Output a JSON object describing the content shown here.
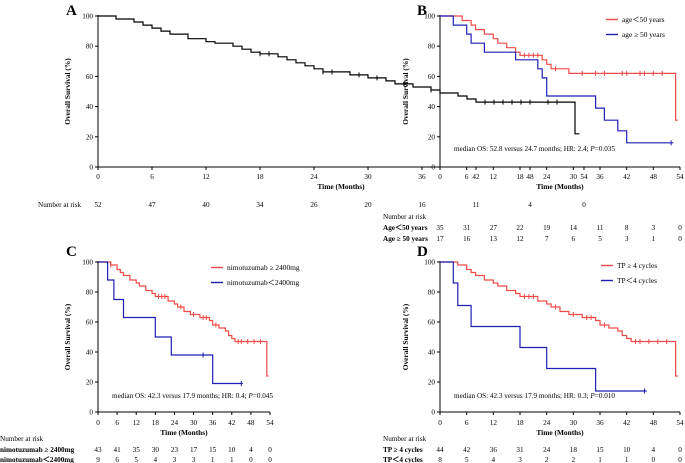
{
  "chart_data": [
    {
      "type": "line",
      "panel_label": "A",
      "xlabel": "Time (Months)",
      "ylabel": "Overall Survival (%)",
      "xlim": [
        0,
        54
      ],
      "ylim": [
        0,
        100
      ],
      "x_ticks": [
        "0",
        "6",
        "12",
        "18",
        "24",
        "30",
        "36",
        "42",
        "48",
        "54"
      ],
      "y_ticks": [
        "0",
        "20",
        "40",
        "60",
        "80",
        "100"
      ],
      "series": [
        {
          "name": "All patients",
          "color": "#000000",
          "steps": [
            [
              0,
              100
            ],
            [
              2,
              98
            ],
            [
              4,
              96
            ],
            [
              5,
              94
            ],
            [
              6,
              92
            ],
            [
              7,
              90
            ],
            [
              8,
              88
            ],
            [
              10,
              85
            ],
            [
              12,
              83
            ],
            [
              13,
              82
            ],
            [
              15,
              80
            ],
            [
              16,
              78
            ],
            [
              17,
              76
            ],
            [
              18,
              75
            ],
            [
              20,
              73
            ],
            [
              21,
              71
            ],
            [
              22,
              69
            ],
            [
              23,
              67
            ],
            [
              24,
              65
            ],
            [
              25,
              63
            ],
            [
              28,
              61
            ],
            [
              30,
              59
            ],
            [
              32,
              57
            ],
            [
              33,
              55
            ],
            [
              35,
              53
            ],
            [
              37,
              51
            ],
            [
              38,
              49
            ],
            [
              40,
              47
            ],
            [
              41,
              45
            ],
            [
              42,
              43
            ],
            [
              53,
              22
            ],
            [
              53.5,
              22
            ]
          ],
          "censors": [
            [
              18,
              75
            ],
            [
              19,
              75
            ],
            [
              25,
              63
            ],
            [
              26,
              63
            ],
            [
              29,
              61
            ],
            [
              31,
              59
            ],
            [
              34,
              55
            ],
            [
              37,
              51
            ],
            [
              43,
              43
            ],
            [
              44,
              43
            ],
            [
              45,
              43
            ],
            [
              46,
              43
            ],
            [
              47,
              43
            ],
            [
              48,
              43
            ],
            [
              50,
              43
            ],
            [
              51,
              43
            ]
          ]
        }
      ],
      "risk_table": {
        "header": "Number at risk",
        "rows": [
          {
            "label": "",
            "values": [
              "52",
              "47",
              "40",
              "34",
              "26",
              "20",
              "16",
              "11",
              "4",
              "0"
            ]
          }
        ]
      }
    },
    {
      "type": "line",
      "panel_label": "B",
      "xlabel": "Time (Months)",
      "ylabel": "Overall Survival (%)",
      "xlim": [
        0,
        54
      ],
      "ylim": [
        0,
        100
      ],
      "x_ticks": [
        "0",
        "6",
        "12",
        "18",
        "24",
        "30",
        "36",
        "42",
        "48",
        "54"
      ],
      "y_ticks": [
        "0",
        "20",
        "40",
        "60",
        "80",
        "100"
      ],
      "legend": [
        "age＜50 years",
        "age ≥ 50 years"
      ],
      "legend_position": "top-right",
      "annotation": {
        "text": "median OS: 52.8 versus 24.7 months; HR: 2.4; ",
        "italic": "P",
        "tail": "=0.035"
      },
      "series": [
        {
          "name": "age＜50 years",
          "color": "#f04a4a",
          "steps": [
            [
              0,
              100
            ],
            [
              5,
              97
            ],
            [
              7,
              94
            ],
            [
              8,
              91
            ],
            [
              10,
              88
            ],
            [
              12,
              85
            ],
            [
              13,
              82
            ],
            [
              15,
              79
            ],
            [
              17,
              76
            ],
            [
              18,
              74
            ],
            [
              23,
              71
            ],
            [
              24,
              68
            ],
            [
              25,
              65
            ],
            [
              29,
              62
            ],
            [
              52,
              62
            ],
            [
              53,
              31
            ],
            [
              53.5,
              31
            ]
          ],
          "censors": [
            [
              19,
              74
            ],
            [
              20,
              74
            ],
            [
              21,
              74
            ],
            [
              22,
              74
            ],
            [
              26,
              65
            ],
            [
              32,
              62
            ],
            [
              35,
              62
            ],
            [
              37,
              62
            ],
            [
              41,
              62
            ],
            [
              42,
              62
            ],
            [
              45,
              62
            ],
            [
              46,
              62
            ],
            [
              48,
              62
            ],
            [
              50,
              62
            ]
          ]
        },
        {
          "name": "age ≥ 50 years",
          "color": "#1f1fb4",
          "steps": [
            [
              0,
              100
            ],
            [
              3,
              94
            ],
            [
              6,
              88
            ],
            [
              7,
              82
            ],
            [
              10,
              76
            ],
            [
              17,
              71
            ],
            [
              22,
              65
            ],
            [
              23,
              59
            ],
            [
              24,
              47
            ],
            [
              35,
              39
            ],
            [
              37,
              31
            ],
            [
              40,
              24
            ],
            [
              42,
              16
            ],
            [
              52,
              16
            ],
            [
              52.5,
              16
            ]
          ],
          "censors": [
            [
              52,
              16
            ]
          ]
        }
      ],
      "risk_table": {
        "header": "Number at risk",
        "rows": [
          {
            "label": "Age＜50 years",
            "values": [
              "35",
              "31",
              "27",
              "22",
              "19",
              "14",
              "11",
              "8",
              "3",
              "0"
            ]
          },
          {
            "label": "Age ≥ 50 years",
            "values": [
              "17",
              "16",
              "13",
              "12",
              "7",
              "6",
              "5",
              "3",
              "1",
              "0"
            ]
          }
        ]
      }
    },
    {
      "type": "line",
      "panel_label": "C",
      "xlabel": "Time (Months)",
      "ylabel": "Overall Survival (%)",
      "xlim": [
        0,
        54
      ],
      "ylim": [
        0,
        100
      ],
      "x_ticks": [
        "0",
        "6",
        "12",
        "18",
        "24",
        "30",
        "36",
        "42",
        "48",
        "54"
      ],
      "y_ticks": [
        "0",
        "20",
        "40",
        "60",
        "80",
        "100"
      ],
      "legend": [
        "nimotuzumab ≥ 2400mg",
        "nimotuzumab＜2400mg"
      ],
      "legend_position": "top-right",
      "annotation": {
        "text": "median OS: 42.3 versus 17.9 months; HR: 0.4; ",
        "italic": "P",
        "tail": "=0.045"
      },
      "series": [
        {
          "name": "nimotuzumab ≥ 2400mg",
          "color": "#f04a4a",
          "steps": [
            [
              0,
              100
            ],
            [
              4,
              98
            ],
            [
              6,
              95
            ],
            [
              7,
              93
            ],
            [
              8,
              91
            ],
            [
              10,
              88
            ],
            [
              12,
              86
            ],
            [
              13,
              84
            ],
            [
              15,
              81
            ],
            [
              17,
              79
            ],
            [
              18,
              77
            ],
            [
              22,
              74
            ],
            [
              24,
              72
            ],
            [
              25,
              70
            ],
            [
              27,
              67
            ],
            [
              29,
              65
            ],
            [
              32,
              63
            ],
            [
              35,
              61
            ],
            [
              36,
              58
            ],
            [
              38,
              56
            ],
            [
              40,
              54
            ],
            [
              41,
              51
            ],
            [
              42,
              49
            ],
            [
              43,
              47
            ],
            [
              52,
              47
            ],
            [
              53,
              24
            ],
            [
              53.5,
              24
            ]
          ],
          "censors": [
            [
              4,
              98
            ],
            [
              19,
              77
            ],
            [
              20,
              77
            ],
            [
              21,
              77
            ],
            [
              26,
              70
            ],
            [
              30,
              65
            ],
            [
              33,
              63
            ],
            [
              34,
              63
            ],
            [
              37,
              58
            ],
            [
              44,
              47
            ],
            [
              45,
              47
            ],
            [
              47,
              47
            ],
            [
              49,
              47
            ],
            [
              51,
              47
            ]
          ]
        },
        {
          "name": "nimotuzumab＜2400mg",
          "color": "#1f1fb4",
          "steps": [
            [
              0,
              100
            ],
            [
              3,
              88
            ],
            [
              5,
              75
            ],
            [
              8,
              63
            ],
            [
              18,
              50
            ],
            [
              23,
              38
            ],
            [
              33,
              38
            ],
            [
              36,
              19
            ],
            [
              45,
              19
            ],
            [
              45.5,
              19
            ]
          ],
          "censors": [
            [
              33,
              38
            ],
            [
              45,
              19
            ]
          ]
        }
      ],
      "risk_table": {
        "header": "Number at risk",
        "rows": [
          {
            "label": "nimotuzumab ≥ 2400mg",
            "values": [
              "43",
              "41",
              "35",
              "30",
              "23",
              "17",
              "15",
              "10",
              "4",
              "0"
            ]
          },
          {
            "label": "nimotuzumab＜2400mg",
            "values": [
              "9",
              "6",
              "5",
              "4",
              "3",
              "3",
              "1",
              "1",
              "0",
              "0"
            ]
          }
        ]
      }
    },
    {
      "type": "line",
      "panel_label": "D",
      "xlabel": "Time (Months)",
      "ylabel": "Overall Survival (%)",
      "xlim": [
        0,
        54
      ],
      "ylim": [
        0,
        100
      ],
      "x_ticks": [
        "0",
        "6",
        "12",
        "18",
        "24",
        "30",
        "36",
        "42",
        "48",
        "54"
      ],
      "y_ticks": [
        "0",
        "20",
        "40",
        "60",
        "80",
        "100"
      ],
      "legend": [
        "TP ≥ 4 cycles",
        "TP＜4 cycles"
      ],
      "legend_position": "top-right",
      "annotation": {
        "text": "median OS: 42.3 versus 17.9 months; HR: 0.3; ",
        "italic": "P",
        "tail": "=0.010"
      },
      "series": [
        {
          "name": "TP ≥ 4 cycles",
          "color": "#f04a4a",
          "steps": [
            [
              0,
              100
            ],
            [
              4,
              98
            ],
            [
              6,
              95
            ],
            [
              7,
              93
            ],
            [
              8,
              91
            ],
            [
              10,
              88
            ],
            [
              12,
              86
            ],
            [
              13,
              84
            ],
            [
              15,
              81
            ],
            [
              17,
              79
            ],
            [
              18,
              77
            ],
            [
              22,
              74
            ],
            [
              24,
              72
            ],
            [
              25,
              70
            ],
            [
              27,
              67
            ],
            [
              29,
              65
            ],
            [
              32,
              63
            ],
            [
              35,
              61
            ],
            [
              36,
              58
            ],
            [
              38,
              56
            ],
            [
              40,
              54
            ],
            [
              41,
              51
            ],
            [
              42,
              49
            ],
            [
              43,
              47
            ],
            [
              52,
              47
            ],
            [
              53,
              24
            ],
            [
              53.5,
              24
            ]
          ],
          "censors": [
            [
              19,
              77
            ],
            [
              20,
              77
            ],
            [
              21,
              77
            ],
            [
              26,
              70
            ],
            [
              30,
              65
            ],
            [
              33,
              63
            ],
            [
              34,
              63
            ],
            [
              37,
              58
            ],
            [
              44,
              47
            ],
            [
              45,
              47
            ],
            [
              47,
              47
            ],
            [
              49,
              47
            ],
            [
              51,
              47
            ]
          ]
        },
        {
          "name": "TP＜4 cycles",
          "color": "#1f1fb4",
          "steps": [
            [
              0,
              100
            ],
            [
              3,
              86
            ],
            [
              4,
              71
            ],
            [
              7,
              57
            ],
            [
              18,
              43
            ],
            [
              24,
              29
            ],
            [
              35,
              14
            ],
            [
              46,
              14
            ],
            [
              46.5,
              14
            ]
          ],
          "censors": [
            [
              46,
              14
            ]
          ]
        }
      ],
      "risk_table": {
        "header": "Number at risk",
        "rows": [
          {
            "label": "TP ≥ 4 cycles",
            "values": [
              "44",
              "42",
              "36",
              "31",
              "24",
              "18",
              "15",
              "10",
              "4",
              "0"
            ]
          },
          {
            "label": "TP＜4 cycles",
            "values": [
              "8",
              "5",
              "4",
              "3",
              "2",
              "2",
              "1",
              "1",
              "0",
              "0"
            ]
          }
        ]
      }
    }
  ]
}
